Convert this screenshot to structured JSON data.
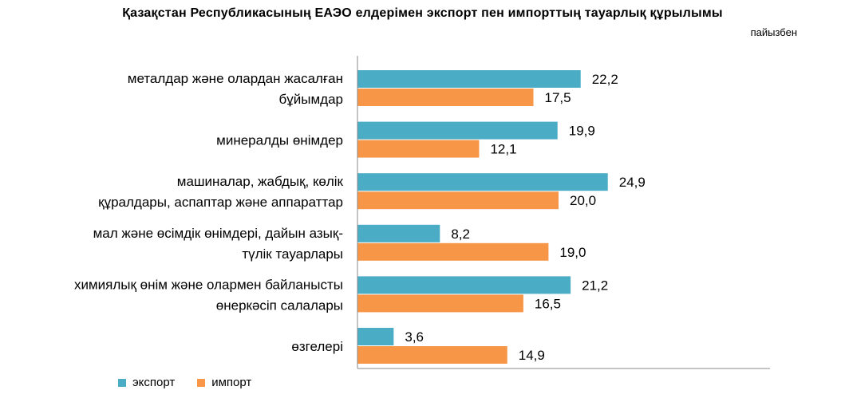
{
  "chart_data": {
    "type": "bar",
    "orientation": "horizontal",
    "title": "Қазақстан Республикасының  ЕАЭО елдерімен экспорт пен импорттың тауарлық құрылымы",
    "unit_note": "пайызбен",
    "categories": [
      [
        "металдар және олардан жасалған",
        "бұйымдар"
      ],
      [
        "минералды өнімдер"
      ],
      [
        "машиналар, жабдық, көлік",
        "құралдары, аспаптар және аппараттар"
      ],
      [
        "мал және өсімдік өнімдері, дайын азық-",
        "түлік тауарлары"
      ],
      [
        "химиялық өнім және олармен байланысты",
        "өнеркәсіп салалары"
      ],
      [
        "өзгелері"
      ]
    ],
    "series": [
      {
        "name": "экспорт",
        "color": "#4bacc6",
        "values": [
          22.2,
          19.9,
          24.9,
          8.2,
          21.2,
          3.6
        ],
        "labels": [
          "22,2",
          "19,9",
          "24,9",
          "8,2",
          "21,2",
          "3,6"
        ]
      },
      {
        "name": "импорт",
        "color": "#f79646",
        "values": [
          17.5,
          12.1,
          20.0,
          19.0,
          16.5,
          14.9
        ],
        "labels": [
          "17,5",
          "12,1",
          "20,0",
          "19,0",
          "16,5",
          "14,9"
        ]
      }
    ],
    "xlim": [
      0,
      40
    ],
    "grid": false,
    "legend_position": "bottom-left"
  }
}
